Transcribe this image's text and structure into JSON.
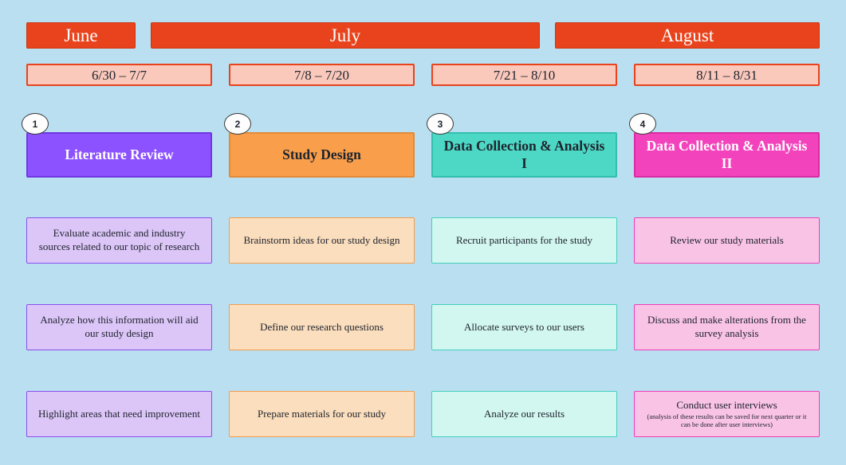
{
  "colors": {
    "background": "#B9DFF0",
    "month_bar": "#E8431C",
    "date_box_fill": "#FAC9BC",
    "phase_purple": "#8C52FF",
    "phase_orange": "#F99F4B",
    "phase_teal": "#4CD8C5",
    "phase_magenta": "#F343BC"
  },
  "months": [
    {
      "label": "June"
    },
    {
      "label": "July"
    },
    {
      "label": "August"
    }
  ],
  "columns": [
    {
      "number": "1",
      "date_range": "6/30 – 7/7",
      "phase": "Literature Review",
      "tasks": [
        {
          "text": "Evaluate academic and industry sources related to our topic of research"
        },
        {
          "text": "Analyze how this information will aid our study design"
        },
        {
          "text": "Highlight areas that need improvement"
        }
      ]
    },
    {
      "number": "2",
      "date_range": "7/8 – 7/20",
      "phase": "Study Design",
      "tasks": [
        {
          "text": "Brainstorm ideas for our study design"
        },
        {
          "text": "Define our research questions"
        },
        {
          "text": "Prepare materials for our study"
        }
      ]
    },
    {
      "number": "3",
      "date_range": "7/21 – 8/10",
      "phase": "Data Collection & Analysis I",
      "tasks": [
        {
          "text": "Recruit participants for the study"
        },
        {
          "text": "Allocate surveys to our users"
        },
        {
          "text": "Analyze our results"
        }
      ]
    },
    {
      "number": "4",
      "date_range": "8/11 – 8/31",
      "phase": "Data Collection & Analysis II",
      "tasks": [
        {
          "text": "Review our study materials"
        },
        {
          "text": "Discuss and make alterations from the survey analysis"
        },
        {
          "text": "Conduct user interviews",
          "note": "(analysis of these results can be saved for next quarter or it can be done after user interviews)"
        }
      ]
    }
  ]
}
